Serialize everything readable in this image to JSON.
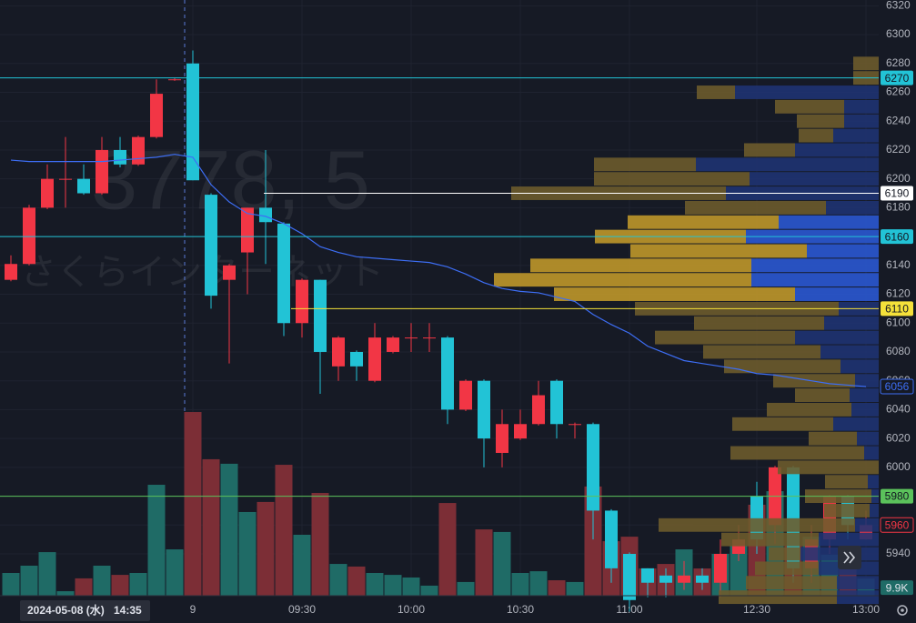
{
  "chart_data": {
    "type": "candlestick",
    "watermark_symbol": "3778, 5",
    "watermark_name": "さくらインターネット",
    "date_label": "2024-05-08 (水)",
    "time_label": "14:35",
    "candles": {
      "open": [
        6130,
        6141,
        6180,
        6200,
        6200,
        6190,
        6220,
        6210,
        6229,
        6269,
        6280,
        6189,
        6130,
        6149,
        6180,
        6169,
        6100,
        6130,
        6070,
        6080,
        6060,
        6080,
        6090,
        6090,
        6090,
        6040,
        6060,
        6010,
        6020,
        6030,
        6060,
        6030,
        6030,
        5970,
        5940,
        5930,
        5925,
        5920,
        5925,
        5920,
        5940,
        5980,
        5960,
        6000,
        5930,
        5950,
        5980,
        5950
      ],
      "high": [
        6147,
        6182,
        6210,
        6229,
        6210,
        6229,
        6229,
        6230,
        6269,
        6270,
        6289,
        6190,
        6141,
        6180,
        6220,
        6170,
        6131,
        6130,
        6091,
        6081,
        6100,
        6091,
        6100,
        6100,
        6091,
        6061,
        6061,
        6040,
        6040,
        6060,
        6061,
        6031,
        6031,
        5971,
        5941,
        5930,
        5930,
        5935,
        5930,
        5950,
        5960,
        5990,
        6001,
        6001,
        5960,
        5981,
        5981,
        5970
      ],
      "low": [
        6129,
        6140,
        6179,
        6180,
        6189,
        6189,
        6208,
        6209,
        6228,
        6268,
        6199,
        6110,
        6072,
        6120,
        6141,
        6091,
        6090,
        6051,
        6060,
        6060,
        6059,
        6079,
        6080,
        6080,
        6030,
        6039,
        6000,
        6000,
        6019,
        6029,
        6020,
        6020,
        5950,
        5920,
        5900,
        5910,
        5910,
        5915,
        5915,
        5910,
        5935,
        5940,
        5947,
        5920,
        5920,
        5940,
        5950,
        5950
      ],
      "close": [
        6141,
        6180,
        6200,
        6200,
        6190,
        6220,
        6210,
        6229,
        6259,
        6269,
        6199,
        6119,
        6140,
        6180,
        6170,
        6100,
        6130,
        6080,
        6090,
        6070,
        6090,
        6090,
        6090,
        6090,
        6040,
        6060,
        6020,
        6030,
        6030,
        6050,
        6030,
        6030,
        5970,
        5930,
        5908,
        5920,
        5920,
        5925,
        5920,
        5940,
        5950,
        5950,
        6000,
        5930,
        5950,
        5980,
        5960,
        5960
      ],
      "up_color": "#f23645",
      "down_color": "#22c3d6"
    },
    "volume": {
      "values": [
        13.1,
        17.3,
        25.1,
        2.6,
        10.0,
        17.3,
        12.0,
        13.1,
        63.9,
        26.7,
        105.8,
        78.6,
        76.0,
        48.2,
        54.0,
        75.4,
        35.1,
        59.2,
        18.3,
        16.8,
        13.1,
        12.0,
        10.5,
        5.8,
        53.4,
        7.9,
        38.2,
        36.7,
        13.1,
        14.1,
        8.9,
        7.9,
        62.9,
        31.4,
        34.0,
        15.7,
        18.3,
        26.7,
        15.7,
        24.1,
        28.8,
        52.4,
        60.2,
        28.8,
        34.0,
        23.6,
        18.3,
        9.9
      ],
      "last_label": "9.9K",
      "ylim": [
        0,
        110
      ],
      "up_color": "#1f6b66",
      "down_color": "#7c2e36"
    },
    "vwap": {
      "values": [
        6213,
        6212,
        6212,
        6212,
        6212,
        6212,
        6213,
        6214,
        6215,
        6217,
        6215,
        6196,
        6184,
        6176,
        6174,
        6169,
        6162,
        6153,
        6149,
        6146,
        6145,
        6144,
        6143,
        6142,
        6139,
        6134,
        6128,
        6124,
        6122,
        6121,
        6118,
        6115,
        6106,
        6099,
        6093,
        6084,
        6079,
        6074,
        6072,
        6070,
        6068,
        6065,
        6064,
        6062,
        6060,
        6058,
        6057,
        6056
      ],
      "color": "#3d6ef5"
    },
    "volume_profile": {
      "prices": [
        6280,
        6270,
        6260,
        6250,
        6240,
        6230,
        6220,
        6210,
        6200,
        6190,
        6180,
        6170,
        6160,
        6150,
        6140,
        6130,
        6120,
        6110,
        6100,
        6090,
        6080,
        6070,
        6060,
        6050,
        6040,
        6030,
        6020,
        6010,
        6000,
        5990,
        5980,
        5970,
        5960,
        5950,
        5940,
        5930,
        5920,
        5910
      ],
      "up": [
        28,
        28,
        42,
        76,
        52,
        38,
        56,
        112,
        171,
        236,
        155,
        166,
        166,
        194,
        243,
        283,
        265,
        224,
        143,
        154,
        129,
        128,
        90,
        60,
        93,
        111,
        53,
        147,
        111,
        47,
        73,
        50,
        216,
        107,
        35,
        70,
        100,
        130
      ],
      "down": [
        0,
        0,
        158,
        38,
        38,
        50,
        92,
        201,
        142,
        168,
        58,
        110,
        146,
        79,
        140,
        140,
        92,
        44,
        60,
        92,
        64,
        42,
        26,
        32,
        30,
        50,
        24,
        16,
        0,
        12,
        8,
        10,
        26,
        66,
        86,
        66,
        46,
        46
      ],
      "value_area": [
        6120,
        6170
      ],
      "up_color": "#6e5c2c",
      "down_color": "#1f3474",
      "va_up_color": "#c29a2a",
      "va_down_color": "#2b59d6"
    },
    "levels": [
      {
        "value": 6270,
        "color": "#22c3d6"
      },
      {
        "value": 6190,
        "color": "#ffffff"
      },
      {
        "value": 6160,
        "color": "#22c3d6"
      },
      {
        "value": 6110,
        "color": "#f5e13a"
      },
      {
        "value": 5980,
        "color": "#5bc25b"
      }
    ],
    "ylim": [
      5911,
      6324
    ],
    "yticks": [
      5940,
      5960,
      5980,
      6000,
      6020,
      6040,
      6060,
      6080,
      6100,
      6120,
      6140,
      6160,
      6180,
      6200,
      6220,
      6240,
      6260,
      6280,
      6300,
      6320
    ],
    "xticks": [
      {
        "value": 10,
        "label": "9"
      },
      {
        "value": 16,
        "label": "09:30"
      },
      {
        "value": 22,
        "label": "10:00"
      },
      {
        "value": 28,
        "label": "10:30"
      },
      {
        "value": 34,
        "label": "11:00"
      },
      {
        "value": 41,
        "label": "12:30"
      },
      {
        "value": 47,
        "label": "13:00"
      }
    ],
    "grid": true
  }
}
